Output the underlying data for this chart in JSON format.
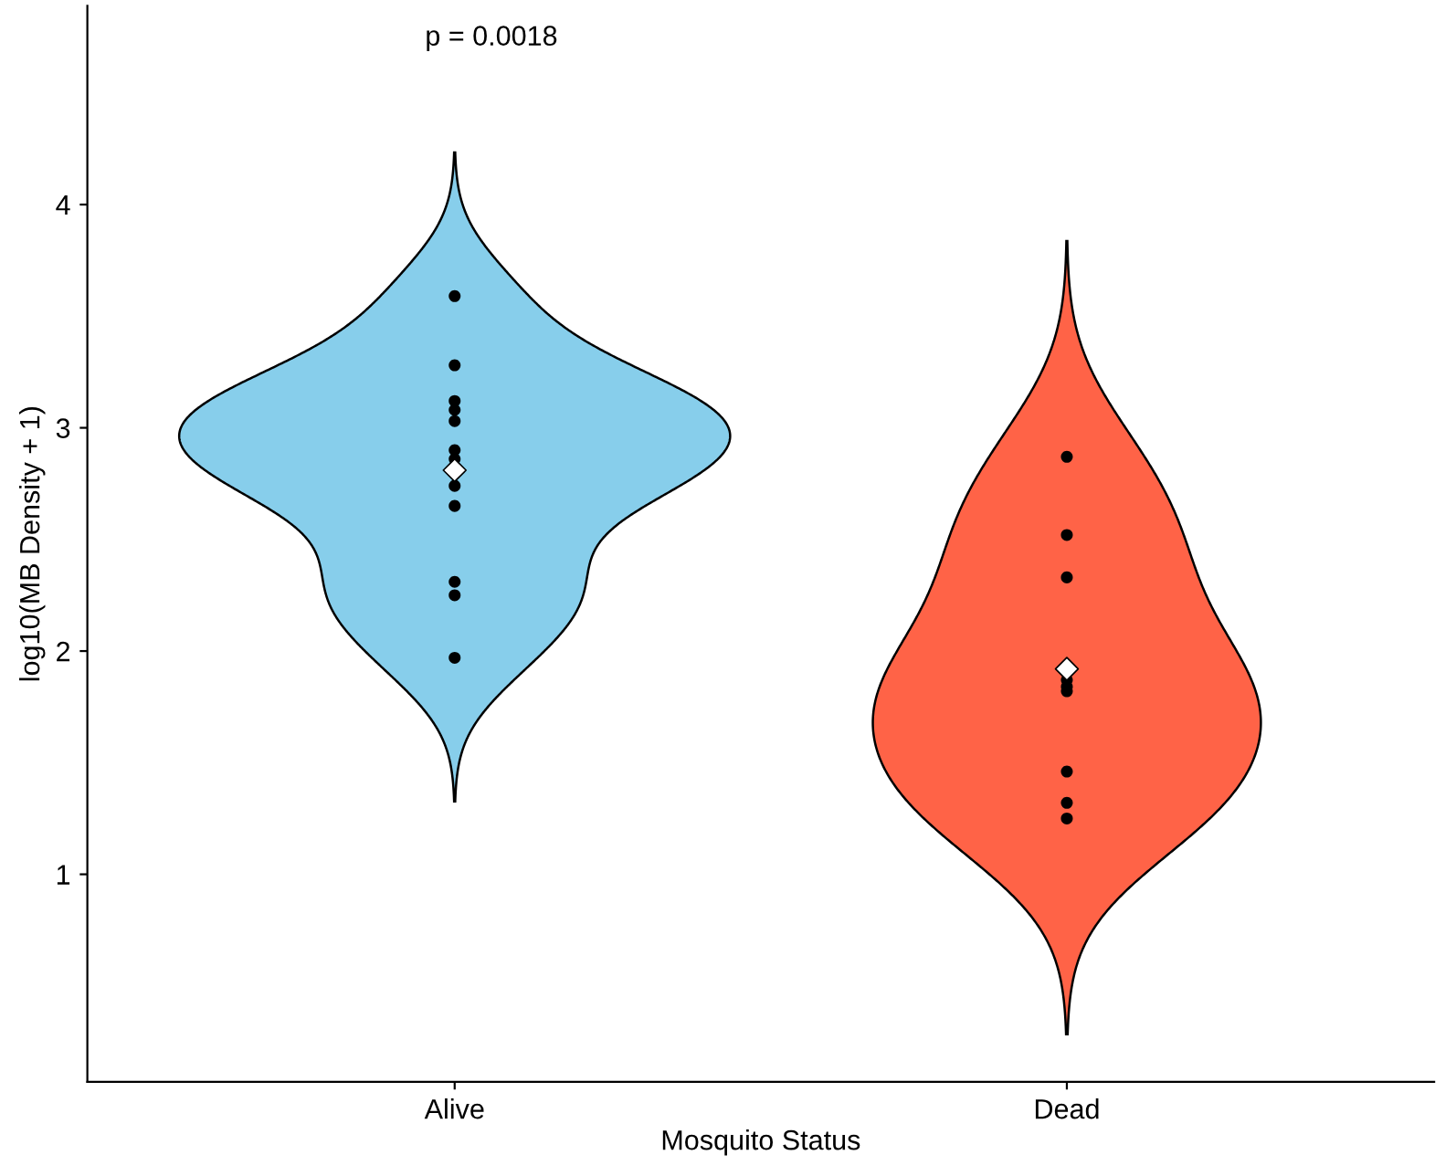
{
  "chart_data": {
    "type": "scatter",
    "xlabel": "Mosquito Status",
    "ylabel": "log10(MB Density + 1)",
    "annotations": [
      "p = 0.0018"
    ],
    "categories": [
      "Alive",
      "Dead"
    ],
    "ylim": [
      0.07,
      4.89
    ],
    "yticks": [
      1,
      2,
      3,
      4
    ],
    "colors": [
      "#87ceeb",
      "#ff6347"
    ],
    "series": [
      {
        "type": "scatter",
        "marker": "circle",
        "color": "#000000",
        "x": [
          "Alive",
          "Alive",
          "Alive",
          "Alive",
          "Alive",
          "Alive",
          "Alive",
          "Alive",
          "Alive",
          "Alive",
          "Alive",
          "Alive"
        ],
        "values": [
          3.59,
          3.28,
          2.9,
          2.86,
          3.08,
          3.12,
          3.03,
          2.74,
          2.65,
          2.31,
          2.25,
          1.97
        ]
      },
      {
        "type": "scatter",
        "marker": "circle",
        "color": "#000000",
        "x": [
          "Dead",
          "Dead",
          "Dead",
          "Dead",
          "Dead",
          "Dead",
          "Dead",
          "Dead",
          "Dead"
        ],
        "values": [
          2.87,
          2.52,
          2.33,
          1.82,
          1.87,
          1.84,
          1.46,
          1.32,
          1.25
        ]
      },
      {
        "type": "scatter",
        "marker": "diamond",
        "color": "#ffffff",
        "x": [
          "Alive",
          "Dead"
        ],
        "values": [
          2.81,
          1.92
        ]
      }
    ],
    "grid": false,
    "legend": false
  }
}
